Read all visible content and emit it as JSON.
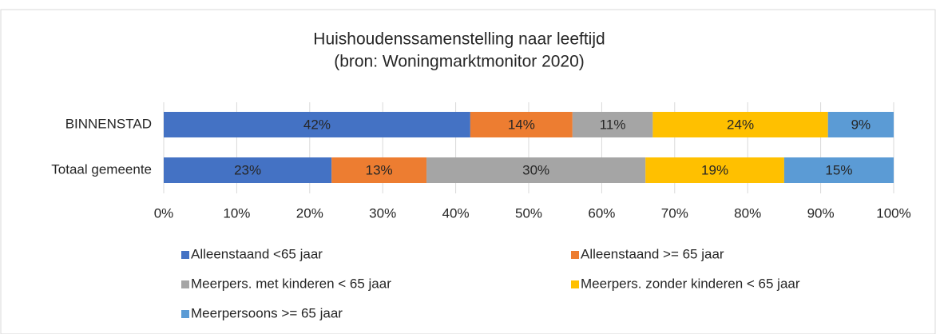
{
  "chart_data": {
    "type": "bar",
    "orientation": "horizontal",
    "stacked": true,
    "title": "Huishoudenssamenstelling naar leeftijd",
    "subtitle": "(bron: Woningmarktmonitor 2020)",
    "categories": [
      "BINNENSTAD",
      "Totaal gemeente"
    ],
    "series": [
      {
        "name": "Alleenstaand <65 jaar",
        "color": "#4472c4",
        "values": [
          42,
          23
        ],
        "value_labels": [
          "42%",
          "23%"
        ]
      },
      {
        "name": "Alleenstaand >= 65 jaar",
        "color": "#ed7d31",
        "values": [
          14,
          13
        ],
        "value_labels": [
          "14%",
          "13%"
        ]
      },
      {
        "name": "Meerpers. met kinderen < 65 jaar",
        "color": "#a5a5a5",
        "values": [
          11,
          30
        ],
        "value_labels": [
          "11%",
          "30%"
        ]
      },
      {
        "name": "Meerpers. zonder kinderen < 65 jaar",
        "color": "#ffc000",
        "values": [
          24,
          19
        ],
        "value_labels": [
          "24%",
          "19%"
        ]
      },
      {
        "name": "Meerpersoons >= 65 jaar",
        "color": "#5b9bd5",
        "values": [
          9,
          15
        ],
        "value_labels": [
          "9%",
          "15%"
        ]
      }
    ],
    "xlim": [
      0,
      100
    ],
    "xticks": [
      {
        "value": 0,
        "label": "0%"
      },
      {
        "value": 10,
        "label": "10%"
      },
      {
        "value": 20,
        "label": "20%"
      },
      {
        "value": 30,
        "label": "30%"
      },
      {
        "value": 40,
        "label": "40%"
      },
      {
        "value": 50,
        "label": "50%"
      },
      {
        "value": 60,
        "label": "60%"
      },
      {
        "value": 70,
        "label": "70%"
      },
      {
        "value": 80,
        "label": "80%"
      },
      {
        "value": 90,
        "label": "90%"
      },
      {
        "value": 100,
        "label": "100%"
      }
    ],
    "grid": true,
    "legend": "bottom"
  }
}
